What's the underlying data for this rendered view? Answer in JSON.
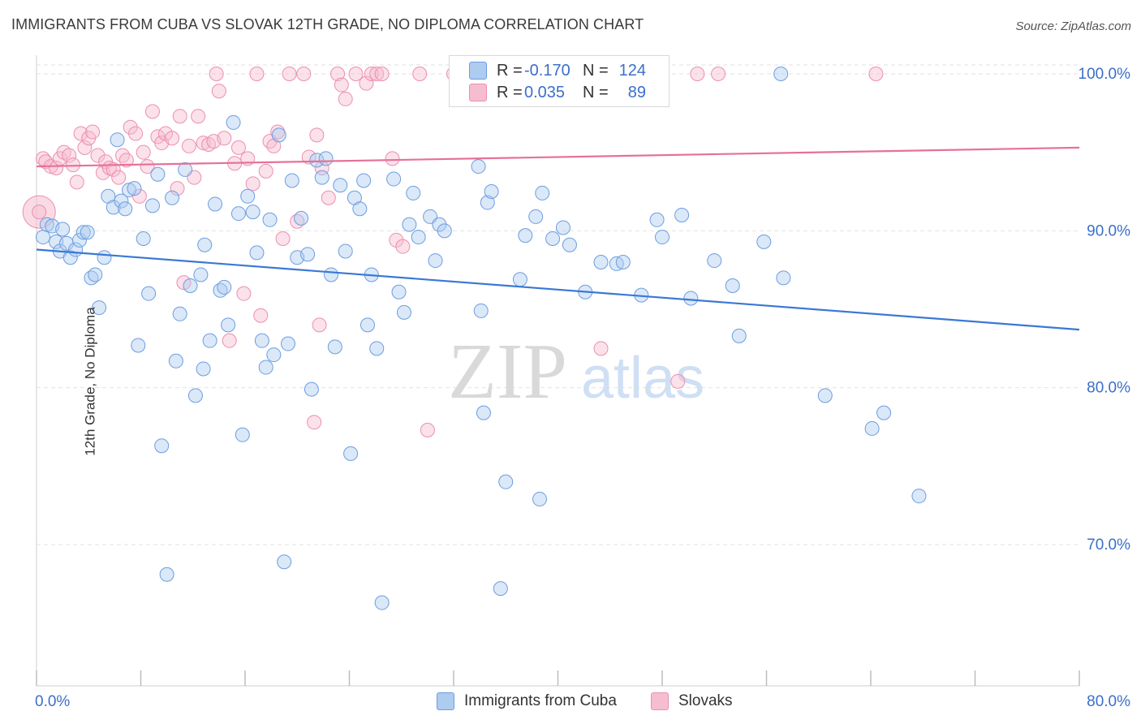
{
  "title": "IMMIGRANTS FROM CUBA VS SLOVAK 12TH GRADE, NO DIPLOMA CORRELATION CHART",
  "source": "Source: ZipAtlas.com",
  "watermark": {
    "zip": "ZIP",
    "atlas": "atlas"
  },
  "colors": {
    "blue_fill": "#aecbf0",
    "blue_stroke": "#6d9de0",
    "blue_line": "#3b78d4",
    "pink_fill": "#f6bdd0",
    "pink_stroke": "#ec8fb0",
    "pink_line": "#e6709a",
    "value_text": "#3b6fc9",
    "grid": "#e2e2e2"
  },
  "legend": {
    "rows": [
      {
        "r_label": "R =",
        "r_value": "-0.170",
        "n_label": "N =",
        "n_value": "124"
      },
      {
        "r_label": "R =",
        "r_value": "0.035",
        "n_label": "N =",
        "n_value": "89"
      }
    ]
  },
  "bottom_legend": [
    "Immigrants from Cuba",
    "Slovaks"
  ],
  "chart_data": {
    "type": "scatter",
    "title": "IMMIGRANTS FROM CUBA VS SLOVAK 12TH GRADE, NO DIPLOMA CORRELATION CHART",
    "xlabel": "",
    "ylabel": "12th Grade, No Diploma",
    "xlim": [
      0,
      80
    ],
    "ylim": [
      61,
      101.5
    ],
    "x_tick_labels": [
      "0.0%",
      "80.0%"
    ],
    "y_ticks": [
      70,
      80,
      90,
      100
    ],
    "y_tick_labels": [
      "70.0%",
      "80.0%",
      "90.0%",
      "100.0%"
    ],
    "grid": true,
    "legend_position": "top-center",
    "series": [
      {
        "name": "Immigrants from Cuba",
        "color": "#aecbf0",
        "trend": {
          "x": [
            0,
            80
          ],
          "y": [
            88.8,
            83.7
          ]
        },
        "points": [
          [
            0.5,
            89.6
          ],
          [
            0.8,
            90.4
          ],
          [
            1.2,
            90.3
          ],
          [
            1.5,
            89.3
          ],
          [
            1.8,
            88.7
          ],
          [
            2.0,
            90.1
          ],
          [
            2.3,
            89.2
          ],
          [
            2.6,
            88.3
          ],
          [
            3.0,
            88.8
          ],
          [
            3.3,
            89.4
          ],
          [
            3.6,
            89.9
          ],
          [
            3.9,
            89.9
          ],
          [
            4.2,
            87.0
          ],
          [
            4.5,
            87.2
          ],
          [
            4.8,
            85.1
          ],
          [
            5.2,
            88.3
          ],
          [
            5.5,
            92.2
          ],
          [
            5.9,
            91.5
          ],
          [
            6.2,
            95.8
          ],
          [
            6.5,
            91.9
          ],
          [
            6.8,
            91.4
          ],
          [
            7.1,
            92.6
          ],
          [
            7.5,
            92.7
          ],
          [
            7.8,
            82.7
          ],
          [
            8.2,
            89.5
          ],
          [
            8.6,
            86.0
          ],
          [
            8.9,
            91.6
          ],
          [
            9.3,
            93.6
          ],
          [
            9.6,
            76.3
          ],
          [
            10.0,
            68.1
          ],
          [
            10.4,
            92.1
          ],
          [
            10.7,
            81.7
          ],
          [
            11.0,
            84.7
          ],
          [
            11.4,
            93.9
          ],
          [
            11.8,
            86.5
          ],
          [
            12.2,
            79.5
          ],
          [
            12.6,
            87.2
          ],
          [
            12.8,
            81.2
          ],
          [
            12.9,
            89.1
          ],
          [
            13.3,
            83.0
          ],
          [
            13.7,
            91.7
          ],
          [
            14.1,
            86.2
          ],
          [
            14.4,
            86.4
          ],
          [
            14.7,
            84.0
          ],
          [
            15.1,
            96.9
          ],
          [
            15.5,
            91.1
          ],
          [
            15.8,
            77.0
          ],
          [
            16.2,
            92.2
          ],
          [
            16.6,
            91.2
          ],
          [
            16.9,
            88.6
          ],
          [
            17.3,
            83.0
          ],
          [
            17.6,
            81.3
          ],
          [
            17.9,
            90.7
          ],
          [
            18.2,
            82.1
          ],
          [
            18.6,
            96.1
          ],
          [
            19.0,
            68.9
          ],
          [
            19.3,
            82.8
          ],
          [
            19.6,
            93.2
          ],
          [
            20.0,
            88.3
          ],
          [
            20.3,
            90.8
          ],
          [
            20.8,
            88.5
          ],
          [
            21.1,
            79.9
          ],
          [
            21.5,
            94.5
          ],
          [
            21.9,
            93.4
          ],
          [
            22.2,
            94.6
          ],
          [
            22.6,
            87.2
          ],
          [
            22.9,
            82.6
          ],
          [
            23.3,
            92.9
          ],
          [
            23.7,
            88.7
          ],
          [
            24.1,
            75.8
          ],
          [
            24.4,
            92.1
          ],
          [
            24.8,
            91.4
          ],
          [
            25.1,
            93.2
          ],
          [
            25.4,
            84.0
          ],
          [
            25.7,
            87.2
          ],
          [
            26.1,
            82.5
          ],
          [
            26.5,
            66.3
          ],
          [
            27.4,
            93.3
          ],
          [
            27.8,
            86.1
          ],
          [
            28.2,
            84.8
          ],
          [
            28.6,
            90.4
          ],
          [
            28.9,
            92.4
          ],
          [
            29.3,
            89.6
          ],
          [
            30.2,
            90.9
          ],
          [
            30.6,
            88.1
          ],
          [
            30.9,
            90.4
          ],
          [
            31.3,
            90.0
          ],
          [
            33.9,
            94.1
          ],
          [
            34.1,
            84.9
          ],
          [
            34.3,
            78.4
          ],
          [
            34.6,
            91.8
          ],
          [
            34.9,
            92.5
          ],
          [
            35.6,
            67.2
          ],
          [
            36.0,
            74.0
          ],
          [
            37.1,
            86.9
          ],
          [
            37.5,
            89.7
          ],
          [
            38.3,
            90.9
          ],
          [
            38.6,
            72.9
          ],
          [
            38.8,
            92.4
          ],
          [
            39.6,
            89.5
          ],
          [
            40.4,
            90.2
          ],
          [
            40.9,
            89.1
          ],
          [
            42.1,
            86.1
          ],
          [
            43.3,
            88.0
          ],
          [
            44.5,
            87.9
          ],
          [
            45.0,
            88.0
          ],
          [
            46.4,
            85.9
          ],
          [
            47.6,
            90.7
          ],
          [
            48.0,
            89.6
          ],
          [
            49.5,
            91.0
          ],
          [
            50.2,
            85.7
          ],
          [
            52.0,
            88.1
          ],
          [
            53.4,
            86.5
          ],
          [
            53.9,
            83.3
          ],
          [
            55.8,
            89.3
          ],
          [
            57.1,
            100.0
          ],
          [
            57.3,
            87.0
          ],
          [
            60.5,
            79.5
          ],
          [
            64.1,
            77.4
          ],
          [
            65.0,
            78.4
          ],
          [
            67.7,
            73.1
          ]
        ]
      },
      {
        "name": "Slovaks",
        "color": "#f6bdd0",
        "trend": {
          "x": [
            0,
            80
          ],
          "y": [
            94.1,
            95.3
          ]
        },
        "points": [
          [
            0.2,
            91.2
          ],
          [
            0.5,
            94.6
          ],
          [
            0.7,
            94.4
          ],
          [
            1.1,
            94.1
          ],
          [
            1.5,
            94.0
          ],
          [
            1.8,
            94.6
          ],
          [
            2.1,
            95.0
          ],
          [
            2.5,
            94.8
          ],
          [
            2.8,
            94.2
          ],
          [
            3.1,
            93.1
          ],
          [
            3.4,
            96.2
          ],
          [
            3.7,
            95.3
          ],
          [
            4.0,
            95.9
          ],
          [
            4.3,
            96.3
          ],
          [
            4.7,
            94.8
          ],
          [
            5.1,
            93.7
          ],
          [
            5.3,
            94.4
          ],
          [
            5.6,
            94.0
          ],
          [
            5.9,
            93.9
          ],
          [
            6.3,
            93.4
          ],
          [
            6.6,
            94.8
          ],
          [
            6.9,
            94.5
          ],
          [
            7.2,
            96.6
          ],
          [
            7.6,
            96.2
          ],
          [
            7.9,
            92.2
          ],
          [
            8.2,
            95.0
          ],
          [
            8.5,
            94.1
          ],
          [
            8.9,
            97.6
          ],
          [
            9.3,
            96.0
          ],
          [
            9.6,
            95.6
          ],
          [
            9.9,
            96.2
          ],
          [
            10.4,
            95.9
          ],
          [
            10.8,
            92.7
          ],
          [
            11.0,
            97.3
          ],
          [
            11.3,
            86.7
          ],
          [
            11.7,
            95.4
          ],
          [
            12.1,
            93.4
          ],
          [
            12.4,
            97.3
          ],
          [
            12.8,
            95.6
          ],
          [
            13.2,
            95.5
          ],
          [
            13.6,
            95.7
          ],
          [
            13.8,
            100.0
          ],
          [
            14.0,
            98.9
          ],
          [
            14.4,
            95.9
          ],
          [
            14.8,
            83.0
          ],
          [
            15.2,
            94.3
          ],
          [
            15.5,
            95.3
          ],
          [
            15.9,
            86.0
          ],
          [
            16.2,
            94.6
          ],
          [
            16.6,
            93.0
          ],
          [
            16.9,
            100.0
          ],
          [
            17.2,
            84.6
          ],
          [
            17.6,
            93.8
          ],
          [
            17.9,
            95.7
          ],
          [
            18.2,
            95.4
          ],
          [
            18.5,
            96.3
          ],
          [
            18.9,
            89.5
          ],
          [
            19.4,
            100.0
          ],
          [
            20.0,
            90.6
          ],
          [
            20.5,
            100.0
          ],
          [
            20.9,
            94.7
          ],
          [
            21.3,
            77.8
          ],
          [
            21.7,
            84.0
          ],
          [
            21.9,
            94.0
          ],
          [
            22.4,
            92.1
          ],
          [
            23.1,
            100.0
          ],
          [
            23.4,
            99.3
          ],
          [
            23.7,
            98.4
          ],
          [
            24.5,
            100.0
          ],
          [
            25.3,
            99.4
          ],
          [
            25.7,
            100.0
          ],
          [
            26.1,
            100.0
          ],
          [
            26.5,
            100.0
          ],
          [
            27.3,
            94.6
          ],
          [
            27.6,
            89.4
          ],
          [
            28.1,
            89.0
          ],
          [
            29.4,
            100.0
          ],
          [
            30.0,
            77.3
          ],
          [
            32.0,
            100.0
          ],
          [
            33.9,
            100.0
          ],
          [
            34.6,
            100.0
          ],
          [
            37.7,
            100.0
          ],
          [
            38.4,
            100.0
          ],
          [
            43.3,
            82.5
          ],
          [
            49.2,
            80.4
          ],
          [
            50.7,
            100.0
          ],
          [
            52.3,
            100.0
          ],
          [
            64.4,
            100.0
          ],
          [
            21.5,
            96.1
          ]
        ]
      }
    ]
  }
}
